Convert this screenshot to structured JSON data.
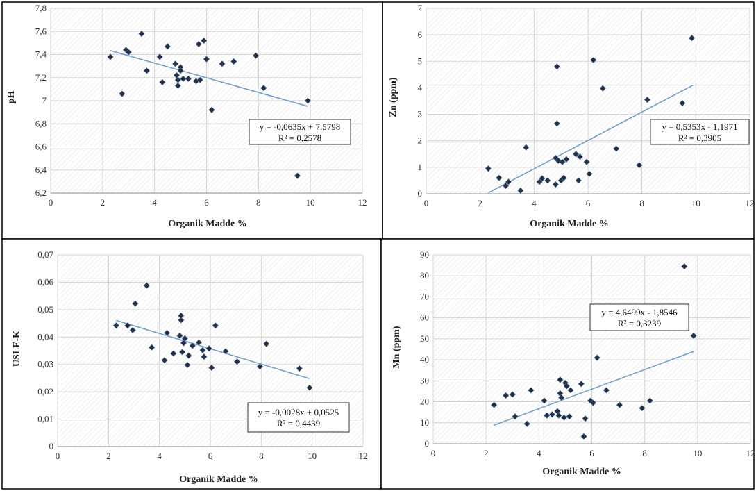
{
  "chart_data": [
    {
      "type": "scatter",
      "xlabel": "Organik Madde %",
      "ylabel": "pH",
      "xlim": [
        0,
        12
      ],
      "ylim": [
        6.2,
        7.8
      ],
      "xticks": [
        "0",
        "2",
        "4",
        "6",
        "8",
        "10",
        "12"
      ],
      "yticks": [
        "6,2",
        "6,4",
        "6,6",
        "6,8",
        "7",
        "7,2",
        "7,4",
        "7,6",
        "7,8"
      ],
      "equation": "y = -0,0635x + 7,5798",
      "r2": "R² = 0,2578",
      "trend": {
        "slope": -0.0635,
        "intercept": 7.5798,
        "x_range": [
          2.3,
          9.9
        ]
      },
      "points": [
        [
          2.3,
          7.38
        ],
        [
          2.75,
          7.06
        ],
        [
          2.9,
          7.44
        ],
        [
          3.0,
          7.42
        ],
        [
          3.5,
          7.58
        ],
        [
          3.7,
          7.26
        ],
        [
          4.2,
          7.38
        ],
        [
          4.3,
          7.16
        ],
        [
          4.5,
          7.47
        ],
        [
          4.8,
          7.32
        ],
        [
          4.85,
          7.22
        ],
        [
          4.9,
          7.18
        ],
        [
          4.9,
          7.13
        ],
        [
          5.0,
          7.29
        ],
        [
          5.0,
          7.26
        ],
        [
          5.1,
          7.19
        ],
        [
          5.3,
          7.19
        ],
        [
          5.6,
          7.17
        ],
        [
          5.7,
          7.49
        ],
        [
          5.75,
          7.18
        ],
        [
          5.9,
          7.52
        ],
        [
          6.0,
          7.36
        ],
        [
          6.2,
          6.92
        ],
        [
          6.6,
          7.32
        ],
        [
          7.05,
          7.34
        ],
        [
          7.9,
          7.39
        ],
        [
          8.2,
          7.11
        ],
        [
          9.5,
          6.35
        ],
        [
          9.9,
          7.0
        ]
      ]
    },
    {
      "type": "scatter",
      "xlabel": "Organik Madde %",
      "ylabel": "Zn (ppm)",
      "xlim": [
        0,
        12
      ],
      "ylim": [
        0,
        7
      ],
      "xticks": [
        "0",
        "2",
        "4",
        "6",
        "8",
        "10",
        "12"
      ],
      "yticks": [
        "0",
        "1",
        "2",
        "3",
        "4",
        "5",
        "6",
        "7"
      ],
      "equation": "y = 0,5353x - 1,1971",
      "r2": "R² = 0,3905",
      "trend": {
        "slope": 0.5353,
        "intercept": -1.1971,
        "x_range": [
          2.3,
          9.9
        ]
      },
      "points": [
        [
          2.3,
          0.95
        ],
        [
          2.7,
          0.6
        ],
        [
          2.95,
          0.3
        ],
        [
          3.05,
          0.45
        ],
        [
          3.5,
          0.12
        ],
        [
          3.7,
          1.75
        ],
        [
          4.2,
          0.45
        ],
        [
          4.3,
          0.58
        ],
        [
          4.5,
          0.5
        ],
        [
          4.8,
          0.35
        ],
        [
          4.8,
          1.35
        ],
        [
          4.85,
          4.8
        ],
        [
          4.85,
          2.65
        ],
        [
          4.9,
          1.25
        ],
        [
          5.0,
          0.5
        ],
        [
          5.05,
          1.2
        ],
        [
          5.1,
          0.6
        ],
        [
          5.2,
          1.3
        ],
        [
          5.55,
          1.5
        ],
        [
          5.65,
          0.5
        ],
        [
          5.7,
          1.4
        ],
        [
          5.95,
          1.2
        ],
        [
          6.05,
          0.75
        ],
        [
          6.2,
          5.05
        ],
        [
          6.55,
          3.98
        ],
        [
          7.05,
          1.7
        ],
        [
          7.9,
          1.08
        ],
        [
          8.2,
          3.55
        ],
        [
          9.5,
          3.42
        ],
        [
          9.85,
          5.88
        ]
      ]
    },
    {
      "type": "scatter",
      "xlabel": "Organik Madde %",
      "ylabel": "USLE-K",
      "xlim": [
        0,
        12
      ],
      "ylim": [
        0,
        0.07
      ],
      "xticks": [
        "0",
        "2",
        "4",
        "6",
        "8",
        "10",
        "12"
      ],
      "yticks": [
        "0",
        "0,01",
        "0,02",
        "0,03",
        "0,04",
        "0,05",
        "0,06",
        "0,07"
      ],
      "equation": "y = -0,0028x + 0,0525",
      "r2": "R² = 0,4439",
      "trend": {
        "slope": -0.0028,
        "intercept": 0.0525,
        "x_range": [
          2.3,
          9.9
        ]
      },
      "points": [
        [
          2.3,
          0.0442
        ],
        [
          2.75,
          0.0442
        ],
        [
          2.95,
          0.0425
        ],
        [
          3.05,
          0.0522
        ],
        [
          3.5,
          0.0588
        ],
        [
          3.7,
          0.0362
        ],
        [
          4.2,
          0.0315
        ],
        [
          4.3,
          0.0415
        ],
        [
          4.55,
          0.034
        ],
        [
          4.8,
          0.0405
        ],
        [
          4.85,
          0.0462
        ],
        [
          4.85,
          0.0478
        ],
        [
          4.9,
          0.0345
        ],
        [
          4.95,
          0.0378
        ],
        [
          5.0,
          0.0395
        ],
        [
          5.1,
          0.0298
        ],
        [
          5.15,
          0.0332
        ],
        [
          5.3,
          0.0368
        ],
        [
          5.55,
          0.038
        ],
        [
          5.7,
          0.0352
        ],
        [
          5.75,
          0.0328
        ],
        [
          5.95,
          0.0358
        ],
        [
          6.05,
          0.0288
        ],
        [
          6.2,
          0.0442
        ],
        [
          6.6,
          0.0348
        ],
        [
          7.05,
          0.031
        ],
        [
          7.95,
          0.0292
        ],
        [
          8.2,
          0.0375
        ],
        [
          9.5,
          0.0285
        ],
        [
          9.9,
          0.0215
        ]
      ]
    },
    {
      "type": "scatter",
      "xlabel": "Organik Madde %",
      "ylabel": "Mn (ppm)",
      "xlim": [
        0,
        12
      ],
      "ylim": [
        0,
        90
      ],
      "xticks": [
        "0",
        "2",
        "4",
        "6",
        "8",
        "10",
        "12"
      ],
      "yticks": [
        "0",
        "10",
        "20",
        "30",
        "40",
        "50",
        "60",
        "70",
        "80",
        "90"
      ],
      "equation": "y = 4,6499x - 1,8546",
      "r2": "R² = 0,3239",
      "trend": {
        "slope": 4.6499,
        "intercept": -1.8546,
        "x_range": [
          2.3,
          9.85
        ]
      },
      "points": [
        [
          2.3,
          18.5
        ],
        [
          2.75,
          23
        ],
        [
          3.0,
          23.5
        ],
        [
          3.1,
          13
        ],
        [
          3.55,
          9.5
        ],
        [
          3.7,
          25.5
        ],
        [
          4.2,
          20.5
        ],
        [
          4.3,
          13.5
        ],
        [
          4.5,
          14
        ],
        [
          4.7,
          15.5
        ],
        [
          4.75,
          13.5
        ],
        [
          4.8,
          30.5
        ],
        [
          4.8,
          24
        ],
        [
          4.85,
          22
        ],
        [
          4.95,
          12.5
        ],
        [
          5.0,
          29
        ],
        [
          5.05,
          27.5
        ],
        [
          5.15,
          13
        ],
        [
          5.2,
          25.5
        ],
        [
          5.6,
          28.5
        ],
        [
          5.7,
          3.5
        ],
        [
          5.75,
          12
        ],
        [
          5.95,
          20.5
        ],
        [
          6.05,
          19.5
        ],
        [
          6.2,
          41
        ],
        [
          6.55,
          25.5
        ],
        [
          7.05,
          18.5
        ],
        [
          7.9,
          17
        ],
        [
          8.2,
          20.5
        ],
        [
          9.5,
          84.5
        ],
        [
          9.85,
          51.5
        ]
      ]
    }
  ]
}
